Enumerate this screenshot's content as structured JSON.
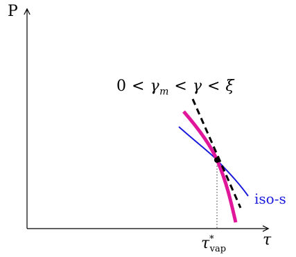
{
  "axes": {
    "y_label": "P",
    "x_label": "τ"
  },
  "annotations": {
    "inequality": "0 < γ_m < γ < ξ",
    "inequality_parts": {
      "zero": "0",
      "lt": "<",
      "gamma": "γ",
      "m": "m",
      "xi": "ξ"
    },
    "iso_label": "iso-s",
    "tau_symbol": "τ",
    "tau_sup": "*",
    "tau_sub": "vap"
  },
  "colors": {
    "axis": "#000000",
    "magenta_curve": "#e0179a",
    "blue_curve": "#1a1adc",
    "dashed_tangent": "#000000"
  }
}
